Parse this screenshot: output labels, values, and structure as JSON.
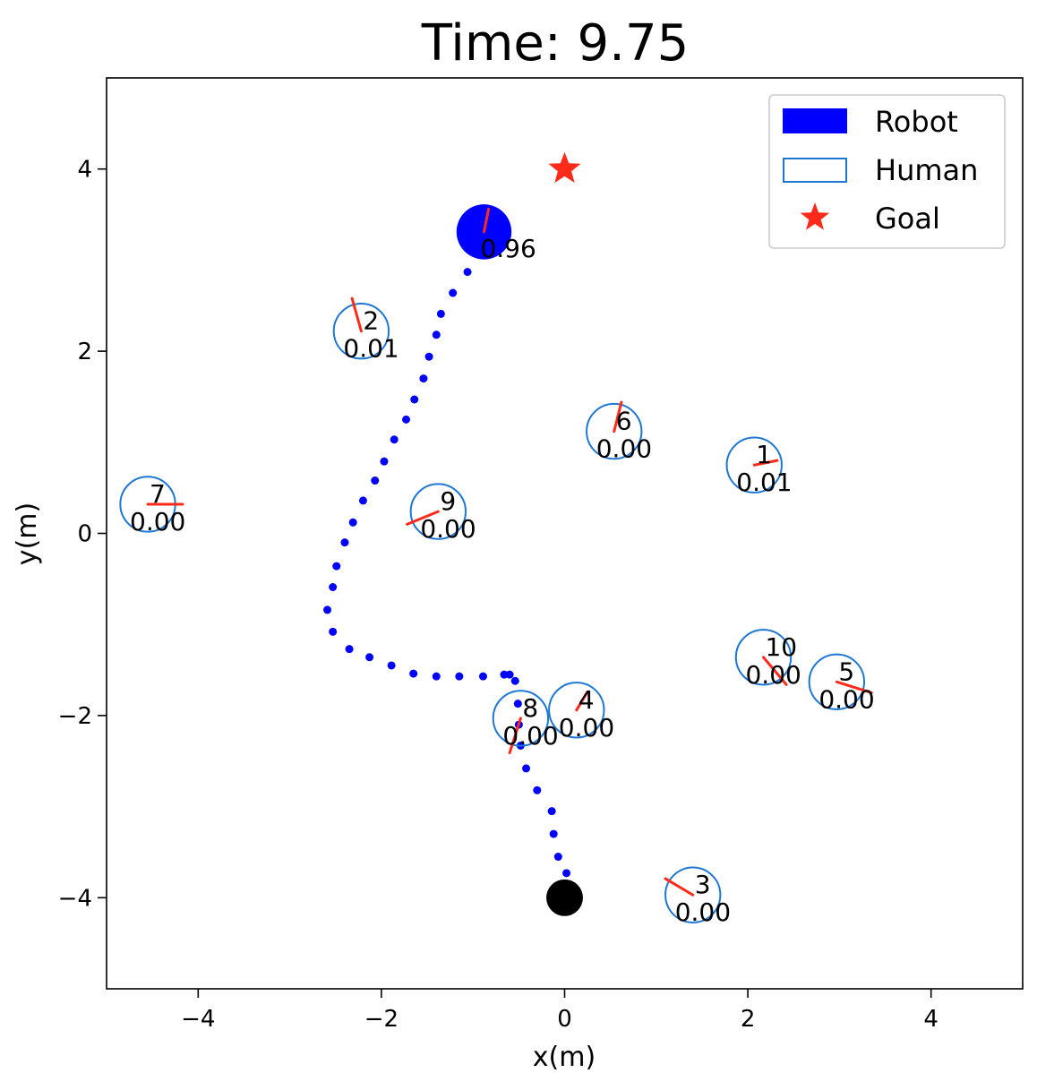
{
  "chart_data": {
    "type": "scatter",
    "title": "Time: 9.75",
    "xlabel": "x(m)",
    "ylabel": "y(m)",
    "xlim": [
      -5,
      5
    ],
    "ylim": [
      -5,
      5
    ],
    "xticks": [
      -4,
      -2,
      0,
      2,
      4
    ],
    "yticks": [
      -4,
      -2,
      0,
      2,
      4
    ],
    "xtick_labels": [
      "−4",
      "−2",
      "0",
      "2",
      "4"
    ],
    "ytick_labels": [
      "−4",
      "−2",
      "0",
      "2",
      "4"
    ],
    "grid": false,
    "legend": {
      "placement": "top-right",
      "entries": [
        {
          "label": "Robot",
          "marker": "filled-rect",
          "color": "#0000ff"
        },
        {
          "label": "Human",
          "marker": "outline-rect",
          "color": "#1f77d4"
        },
        {
          "label": "Goal",
          "marker": "star",
          "color": "#ff2a1a"
        }
      ]
    },
    "colors": {
      "robot": "#0000ff",
      "human": "#1f77d4",
      "goal": "#ff2a1a",
      "arrow": "#ff2a1a",
      "trajectory": "#0000ff",
      "start": "#000000"
    },
    "robot": {
      "x": -0.88,
      "y": 3.31,
      "radius": 0.3,
      "value": "0.96",
      "heading": [
        0.05,
        0.25
      ]
    },
    "goal": {
      "x": 0.0,
      "y": 4.0
    },
    "start": {
      "x": 0.0,
      "y": -4.0,
      "radius": 0.2
    },
    "trajectory": [
      [
        0.02,
        -3.73
      ],
      [
        -0.07,
        -3.55
      ],
      [
        -0.12,
        -3.3
      ],
      [
        -0.14,
        -3.05
      ],
      [
        -0.3,
        -2.82
      ],
      [
        -0.42,
        -2.58
      ],
      [
        -0.48,
        -2.33
      ],
      [
        -0.5,
        -2.1
      ],
      [
        -0.51,
        -1.87
      ],
      [
        -0.54,
        -1.62
      ],
      [
        -0.6,
        -1.55
      ],
      [
        -0.66,
        -1.55
      ],
      [
        -0.89,
        -1.57
      ],
      [
        -1.15,
        -1.57
      ],
      [
        -1.4,
        -1.57
      ],
      [
        -1.65,
        -1.54
      ],
      [
        -1.89,
        -1.45
      ],
      [
        -2.13,
        -1.36
      ],
      [
        -2.35,
        -1.27
      ],
      [
        -2.53,
        -1.08
      ],
      [
        -2.59,
        -0.84
      ],
      [
        -2.53,
        -0.59
      ],
      [
        -2.49,
        -0.36
      ],
      [
        -2.4,
        -0.1
      ],
      [
        -2.31,
        0.12
      ],
      [
        -2.2,
        0.36
      ],
      [
        -2.07,
        0.58
      ],
      [
        -1.97,
        0.79
      ],
      [
        -1.86,
        1.03
      ],
      [
        -1.73,
        1.25
      ],
      [
        -1.64,
        1.47
      ],
      [
        -1.54,
        1.7
      ],
      [
        -1.48,
        1.94
      ],
      [
        -1.4,
        2.18
      ],
      [
        -1.35,
        2.41
      ],
      [
        -1.22,
        2.64
      ],
      [
        -1.06,
        2.87
      ]
    ],
    "humans": [
      {
        "id": "1",
        "x": 2.07,
        "y": 0.75,
        "radius": 0.3,
        "value": "0.01",
        "heading": [
          0.25,
          0.05
        ]
      },
      {
        "id": "2",
        "x": -2.22,
        "y": 2.22,
        "radius": 0.3,
        "value": "0.01",
        "heading": [
          -0.1,
          0.36
        ]
      },
      {
        "id": "3",
        "x": 1.4,
        "y": -3.97,
        "radius": 0.3,
        "value": "0.00",
        "heading": [
          -0.3,
          0.18
        ]
      },
      {
        "id": "4",
        "x": 0.13,
        "y": -1.94,
        "radius": 0.3,
        "value": "0.00",
        "heading": [
          0.12,
          0.2
        ]
      },
      {
        "id": "5",
        "x": 2.97,
        "y": -1.63,
        "radius": 0.3,
        "value": "0.00",
        "heading": [
          0.38,
          -0.12
        ]
      },
      {
        "id": "6",
        "x": 0.54,
        "y": 1.12,
        "radius": 0.3,
        "value": "0.00",
        "heading": [
          0.08,
          0.32
        ]
      },
      {
        "id": "7",
        "x": -4.55,
        "y": 0.32,
        "radius": 0.3,
        "value": "0.00",
        "heading": [
          0.38,
          0.0
        ]
      },
      {
        "id": "8",
        "x": -0.48,
        "y": -2.03,
        "radius": 0.3,
        "value": "0.00",
        "heading": [
          -0.12,
          -0.38
        ]
      },
      {
        "id": "9",
        "x": -1.38,
        "y": 0.24,
        "radius": 0.3,
        "value": "0.00",
        "heading": [
          -0.34,
          -0.14
        ]
      },
      {
        "id": "10",
        "x": 2.17,
        "y": -1.36,
        "radius": 0.3,
        "value": "0.00",
        "heading": [
          0.25,
          -0.3
        ]
      }
    ]
  }
}
